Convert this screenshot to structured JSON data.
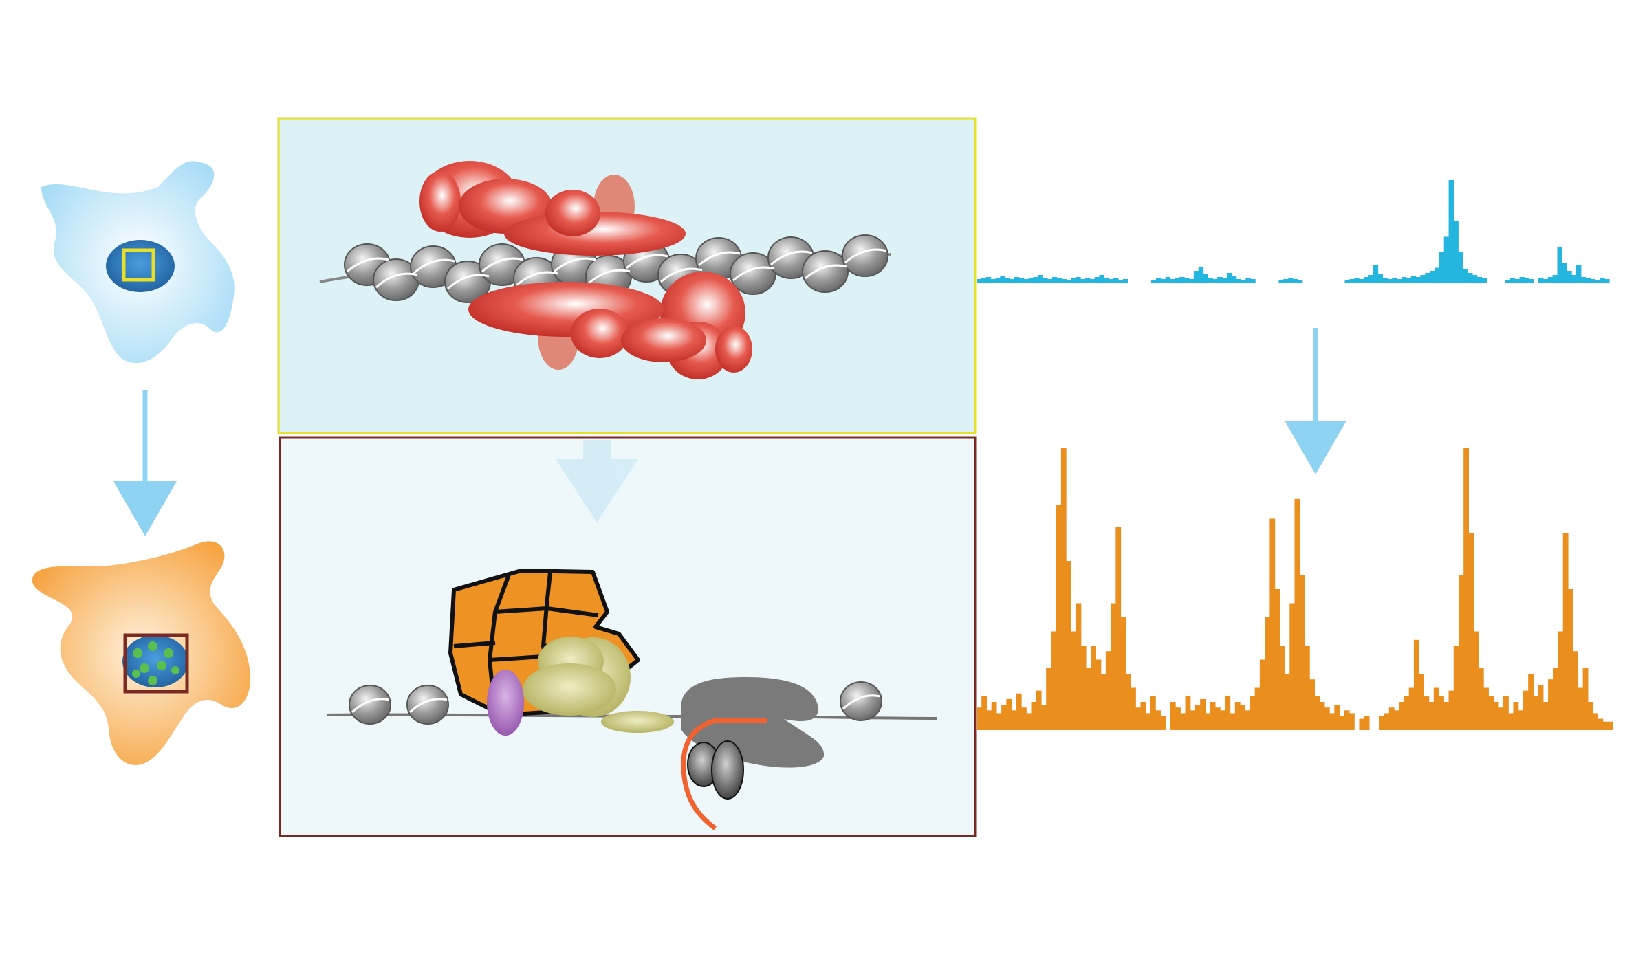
{
  "colors": {
    "quiescent_cell": "#bfe6f8",
    "active_cell": "#f7a94a",
    "nucleus": "#2f7fc4",
    "nucleus_spots": "#5bbf4f",
    "inset_outline_top": "#e6e02a",
    "inset_outline_bottom": "#7a2a22",
    "top_panel_bg": "#dcf2f7",
    "bottom_panel_bg": "#eef8fb",
    "arrow": "#8fd3f2",
    "blue_track": "#25b6e0",
    "orange_track": "#ea8e1e",
    "repressor_complex": "#d9342b",
    "nucleosome": "#8e8e8e",
    "remodeler": "#ee9223",
    "coactivator": "#b3b04d",
    "transcription_factor": "#9a5bb8",
    "polymerase": "#7a7a7a",
    "rna": "#f06230"
  },
  "icons": {
    "top_cell": "quiescent-cell-icon",
    "bottom_cell": "activated-cell-icon",
    "left_arrow": "down-arrow-icon",
    "center_arrow": "down-arrow-icon",
    "right_arrow": "down-arrow-icon"
  },
  "tracks": {
    "blue": [
      0.04,
      0.05,
      0.06,
      0.04,
      0.05,
      0.07,
      0.05,
      0.04,
      0.06,
      0.05,
      0.04,
      0.05,
      0.06,
      0.08,
      0.05,
      0.04,
      0.06,
      0.05,
      0.04,
      0.03,
      0.05,
      0.06,
      0.04,
      0.05,
      0.04,
      0.06,
      0.08,
      0.05,
      0.04,
      0.05,
      0.03,
      0.04,
      0,
      0,
      0,
      0,
      0,
      0.03,
      0.05,
      0.04,
      0.06,
      0.04,
      0.05,
      0.06,
      0.05,
      0.04,
      0.12,
      0.16,
      0.09,
      0.05,
      0.04,
      0.06,
      0.05,
      0.1,
      0.07,
      0.04,
      0.03,
      0.05,
      0.04,
      0,
      0,
      0,
      0,
      0,
      0.03,
      0.04,
      0.05,
      0.04,
      0.03,
      0,
      0,
      0,
      0,
      0,
      0,
      0,
      0,
      0,
      0.03,
      0.04,
      0.05,
      0.04,
      0.06,
      0.08,
      0.18,
      0.09,
      0.05,
      0.04,
      0.05,
      0.04,
      0.06,
      0.05,
      0.07,
      0.06,
      0.08,
      0.1,
      0.12,
      0.15,
      0.3,
      0.45,
      1.0,
      0.6,
      0.3,
      0.14,
      0.1,
      0.08,
      0.06,
      0.05,
      0,
      0,
      0,
      0,
      0.03,
      0.05,
      0.04,
      0.06,
      0.05,
      0.04,
      0,
      0.05,
      0.04,
      0.06,
      0.08,
      0.35,
      0.2,
      0.12,
      0.08,
      0.18,
      0.06,
      0.05,
      0.04,
      0.03,
      0.05,
      0.04
    ],
    "orange": [
      0.08,
      0.12,
      0.07,
      0.1,
      0.06,
      0.09,
      0.11,
      0.07,
      0.13,
      0.08,
      0.06,
      0.1,
      0.14,
      0.09,
      0.22,
      0.35,
      0.8,
      1.0,
      0.6,
      0.35,
      0.45,
      0.3,
      0.22,
      0.3,
      0.25,
      0.2,
      0.28,
      0.45,
      0.72,
      0.4,
      0.2,
      0.15,
      0.08,
      0.1,
      0.06,
      0.12,
      0.07,
      0.05,
      0,
      0.1,
      0.08,
      0.06,
      0.12,
      0.07,
      0.09,
      0.11,
      0.06,
      0.1,
      0.08,
      0.07,
      0.12,
      0.06,
      0.1,
      0.09,
      0.07,
      0.12,
      0.15,
      0.25,
      0.4,
      0.75,
      0.5,
      0.3,
      0.2,
      0.45,
      0.82,
      0.55,
      0.3,
      0.18,
      0.12,
      0.1,
      0.08,
      0.06,
      0.09,
      0.05,
      0.07,
      0.06,
      0,
      0.04,
      0.05,
      0,
      0,
      0.05,
      0.06,
      0.08,
      0.07,
      0.1,
      0.12,
      0.15,
      0.32,
      0.2,
      0.12,
      0.1,
      0.15,
      0.12,
      0.1,
      0.14,
      0.3,
      0.55,
      1.0,
      0.7,
      0.35,
      0.22,
      0.15,
      0.12,
      0.1,
      0.08,
      0.12,
      0.06,
      0.1,
      0.07,
      0.14,
      0.2,
      0.12,
      0.16,
      0.1,
      0.18,
      0.22,
      0.35,
      0.7,
      0.5,
      0.28,
      0.15,
      0.22,
      0.1,
      0.06,
      0.04,
      0.03,
      0.03
    ]
  }
}
